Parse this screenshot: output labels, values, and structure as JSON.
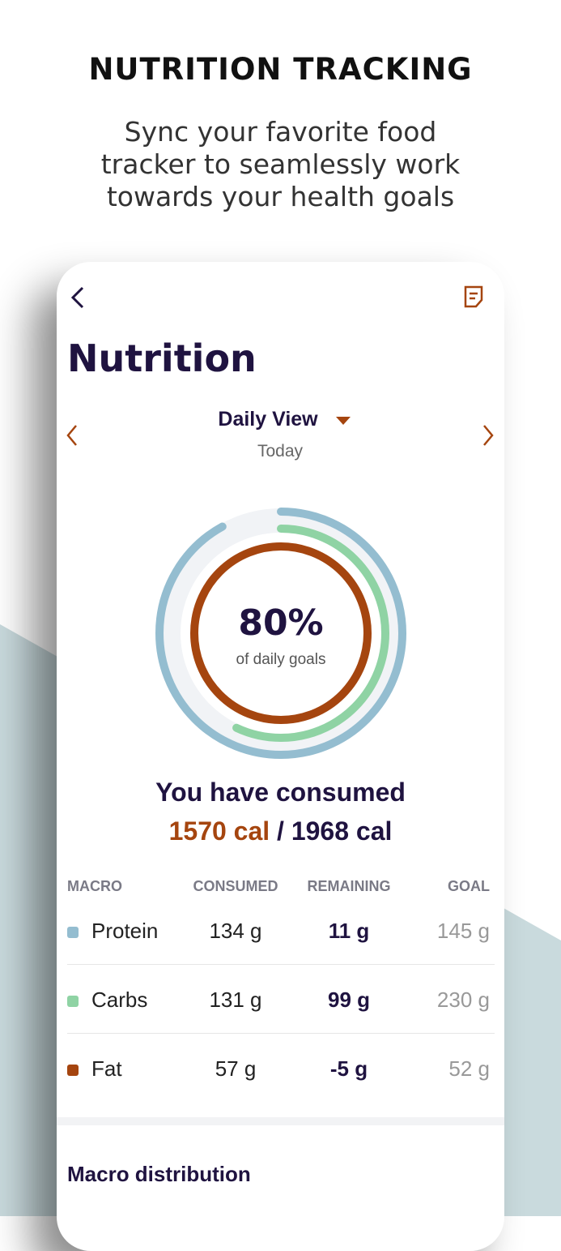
{
  "header": {
    "title": "NUTRITION TRACKING",
    "subtitle": [
      "Sync your favorite food",
      "tracker to seamlessly work",
      "towards your health goals"
    ]
  },
  "screen": {
    "title": "Nutrition",
    "view": "Daily View",
    "date": "Today",
    "ring": {
      "percent": "80%",
      "caption": "of daily goals"
    },
    "consumed": {
      "heading": "You have consumed",
      "amount": "1570 cal",
      "separator": "/",
      "goal": "1968 cal"
    },
    "table": {
      "columns": [
        "MACRO",
        "CONSUMED",
        "REMAINING",
        "GOAL"
      ],
      "rows": [
        [
          "Protein",
          "134 g",
          "11 g",
          "145 g"
        ],
        [
          "Carbs",
          "131 g",
          "99 g",
          "230 g"
        ],
        [
          "Fat",
          "57 g",
          "-5 g",
          "52 g"
        ]
      ]
    },
    "section": "Macro distribution"
  }
}
